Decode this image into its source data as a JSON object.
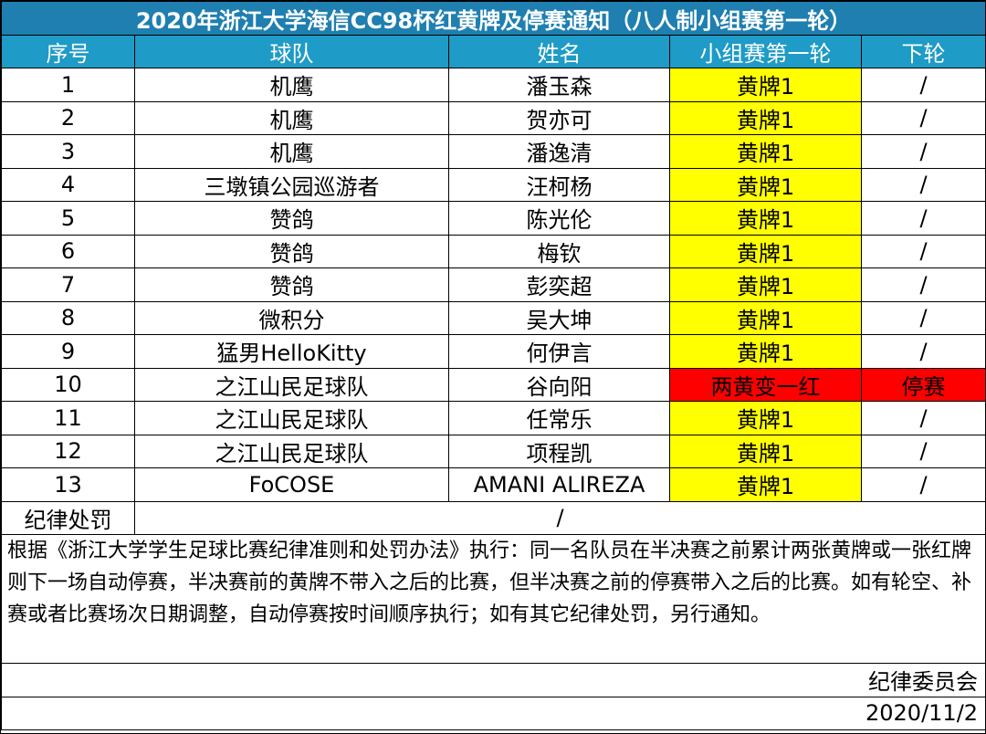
{
  "title": "2020年浙江大学海信CC98杯红黄牌及停赛通知（八人制小组赛第一轮）",
  "headers": {
    "no": "序号",
    "team": "球队",
    "name": "姓名",
    "round1": "小组赛第一轮",
    "next": "下轮"
  },
  "rows": [
    {
      "no": "1",
      "team": "机鹰",
      "name": "潘玉森",
      "round1": "黄牌1",
      "next": "/"
    },
    {
      "no": "2",
      "team": "机鹰",
      "name": "贺亦可",
      "round1": "黄牌1",
      "next": "/"
    },
    {
      "no": "3",
      "team": "机鹰",
      "name": "潘逸清",
      "round1": "黄牌1",
      "next": "/"
    },
    {
      "no": "4",
      "team": "三墩镇公园巡游者",
      "name": "汪柯杨",
      "round1": "黄牌1",
      "next": "/"
    },
    {
      "no": "5",
      "team": "赞鸽",
      "name": "陈光伦",
      "round1": "黄牌1",
      "next": "/"
    },
    {
      "no": "6",
      "team": "赞鸽",
      "name": "梅钦",
      "round1": "黄牌1",
      "next": "/"
    },
    {
      "no": "7",
      "team": "赞鸽",
      "name": "彭奕超",
      "round1": "黄牌1",
      "next": "/"
    },
    {
      "no": "8",
      "team": "微积分",
      "name": "吴大坤",
      "round1": "黄牌1",
      "next": "/"
    },
    {
      "no": "9",
      "team": "猛男HelloKitty",
      "name": "何伊言",
      "round1": "黄牌1",
      "next": "/"
    },
    {
      "no": "10",
      "team": "之江山民足球队",
      "name": "谷向阳",
      "round1": "两黄变一红",
      "next": "停赛"
    },
    {
      "no": "11",
      "team": "之江山民足球队",
      "name": "任常乐",
      "round1": "黄牌1",
      "next": "/"
    },
    {
      "no": "12",
      "team": "之江山民足球队",
      "name": "项程凯",
      "round1": "黄牌1",
      "next": "/"
    },
    {
      "no": "13",
      "team": "FoCOSE",
      "name": "AMANI ALIREZA",
      "round1": "黄牌1",
      "next": "/"
    }
  ],
  "discipline": {
    "label": "纪律处罚",
    "value": "/"
  },
  "notes": "根据《浙江大学学生足球比赛纪律准则和处罚办法》执行：同一名队员在半决赛之前累计两张黄牌或一张红牌则下一场自动停赛，半决赛前的黄牌不带入之后的比赛，但半决赛之前的停赛带入之后的比赛。如有轮空、补赛或者比赛场次日期调整，自动停赛按时间顺序执行；如有其它纪律处罚，另行通知。",
  "signature": "纪律委员会",
  "date": "2020/11/2",
  "colors": {
    "title_bg": "#1e7fb0",
    "header_bg": "#1e9bc6",
    "yellow_card": "#ffff00",
    "red_card": "#ff0000"
  }
}
